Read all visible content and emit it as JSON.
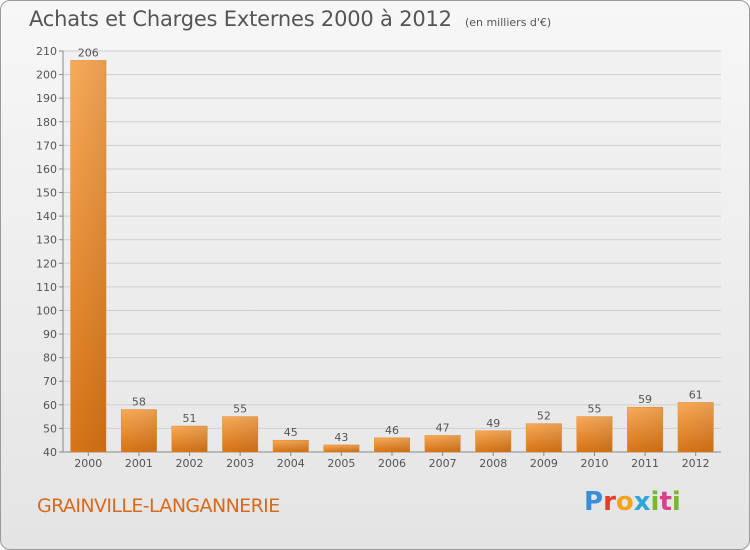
{
  "title": "Achats et Charges Externes 2000 à 2012",
  "subtitle": "(en milliers d'€)",
  "place_name": "GRAINVILLE-LANGANNERIE",
  "logo_text": "Proxiti",
  "colors": {
    "bar": "#f0902e",
    "bar_light": "#f9aa58",
    "bar_dark": "#d87416",
    "text": "#555555",
    "place": "#d96a1c",
    "grid": "#cfcfcf"
  },
  "chart_data": {
    "type": "bar",
    "title": "Achats et Charges Externes 2000 à 2012",
    "subtitle": "(en milliers d'€)",
    "categories": [
      "2000",
      "2001",
      "2002",
      "2003",
      "2004",
      "2005",
      "2006",
      "2007",
      "2008",
      "2009",
      "2010",
      "2011",
      "2012"
    ],
    "values": [
      206,
      58,
      51,
      55,
      45,
      43,
      46,
      47,
      49,
      52,
      55,
      59,
      61
    ],
    "xlabel": "",
    "ylabel": "",
    "ylim": [
      40,
      210
    ],
    "yticks": [
      40,
      50,
      60,
      70,
      80,
      90,
      100,
      110,
      120,
      130,
      140,
      150,
      160,
      170,
      180,
      190,
      200,
      210
    ],
    "grid": true,
    "data_labels": true
  }
}
